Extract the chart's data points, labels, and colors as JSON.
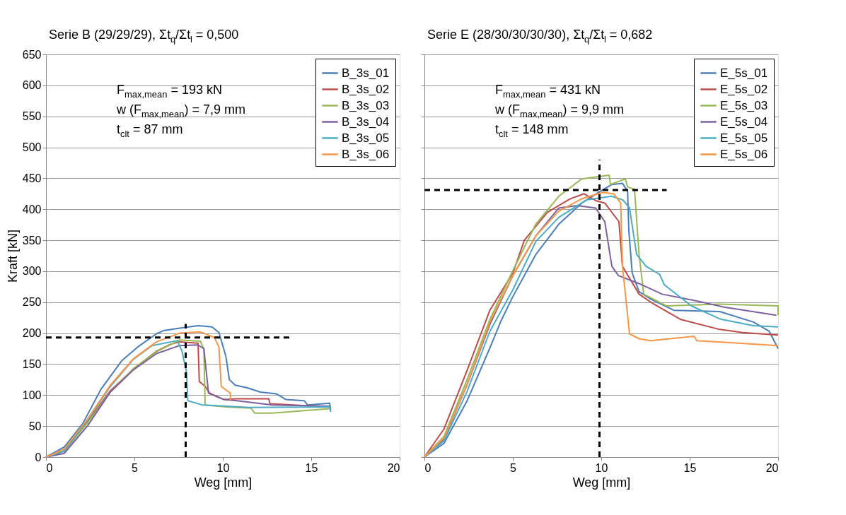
{
  "chart_data": [
    {
      "type": "line",
      "title": "Serie B (29/29/29), Σt$_{q}$/Σt$_{l}$ = 0,500",
      "xlabel": "Weg [mm]",
      "ylabel": "Kraft [kN]",
      "xlim": [
        0,
        20
      ],
      "xticks": [
        0,
        5,
        10,
        15,
        20
      ],
      "ylim": [
        0,
        650
      ],
      "yticks": [
        0,
        50,
        100,
        150,
        200,
        250,
        300,
        350,
        400,
        450,
        500,
        550,
        600,
        650
      ],
      "grid": "y",
      "legend": "top right",
      "marker": "none",
      "line_style": "solid",
      "annotations": [
        "F$_{max,mean}$ = 193 kN",
        "w (F$_{max,mean}$) = 7,9 mm",
        "t$_{clt}$ = 87 mm"
      ],
      "series": [
        {
          "name": "B_3s_01",
          "color": "#4a7ebb",
          "x": [
            0,
            1.03,
            2.08,
            3.12,
            4.3,
            5.2,
            6.25,
            6.64,
            7.56,
            8.6,
            9.39,
            9.78,
            10.17,
            10.37,
            10.7,
            11.35,
            12.13,
            13.04,
            13.56,
            14.6,
            14.8,
            16.04,
            16.1
          ],
          "values": [
            0,
            16,
            54,
            110,
            156,
            178,
            199,
            204,
            208,
            212,
            210,
            201,
            163,
            125,
            116,
            112,
            105,
            102,
            93,
            91,
            84,
            87,
            76
          ]
        },
        {
          "name": "B_3s_02",
          "color": "#be4b48",
          "x": [
            0,
            1.03,
            2.34,
            3.64,
            4.95,
            6.25,
            7.04,
            7.56,
            8.6,
            8.67,
            9.0,
            9.26,
            10.04,
            10.8,
            12.6,
            12.67,
            16.04
          ],
          "values": [
            0,
            10,
            57,
            107,
            142,
            171,
            182,
            186,
            184,
            122,
            114,
            103,
            93,
            94,
            94,
            86,
            81
          ]
        },
        {
          "name": "B_3s_03",
          "color": "#98b954",
          "x": [
            0,
            1.03,
            2.34,
            3.64,
            4.95,
            6.25,
            7.56,
            8.73,
            8.93,
            9.0,
            10.17,
            11.6,
            11.8,
            12.8,
            16.04
          ],
          "values": [
            0,
            9,
            55,
            105,
            143,
            170,
            189,
            187,
            174,
            84,
            81,
            79,
            71,
            71,
            78
          ]
        },
        {
          "name": "B_3s_04",
          "color": "#7d60a0",
          "x": [
            0,
            1.03,
            2.34,
            3.64,
            4.95,
            6.25,
            7.56,
            8.6,
            8.93,
            9.19,
            10.04,
            10.8,
            12.8,
            16.04
          ],
          "values": [
            0,
            6,
            50,
            105,
            141,
            167,
            180,
            181,
            175,
            103,
            93,
            91,
            84,
            82
          ]
        },
        {
          "name": "B_3s_05",
          "color": "#4bacc6",
          "x": [
            0,
            1.03,
            2.34,
            3.64,
            4.95,
            6.0,
            7.43,
            7.69,
            7.95,
            8.02,
            8.86,
            11.48,
            16.04,
            16.1
          ],
          "values": [
            0,
            10,
            59,
            114,
            158,
            180,
            188,
            171,
            137,
            91,
            84,
            80,
            81,
            73
          ]
        },
        {
          "name": "B_3s_06",
          "color": "#f79646",
          "x": [
            0,
            1.03,
            2.34,
            3.64,
            4.95,
            6.25,
            7.56,
            8.73,
            9.52,
            9.78,
            9.91,
            10.43,
            10.43
          ],
          "values": [
            0,
            13,
            61,
            116,
            159,
            186,
            200,
            202,
            193,
            178,
            114,
            103,
            90
          ]
        },
        {
          "color": "#000000",
          "line_style": "dashed",
          "x": [
            0,
            13.8
          ],
          "values": [
            193,
            193
          ]
        },
        {
          "color": "#000000",
          "line_style": "dashed",
          "x": [
            7.9,
            7.9
          ],
          "values": [
            0,
            215
          ]
        }
      ]
    },
    {
      "type": "line",
      "title": "Serie E (28/30/30/30/30), Σt$_{q}$/Σt$_{l}$ = 0,682",
      "xlabel": "Weg [mm]",
      "xlim": [
        0,
        20
      ],
      "xticks": [
        0,
        5,
        10,
        15,
        20
      ],
      "ylim": [
        0,
        650
      ],
      "yticks": [
        0,
        50,
        100,
        150,
        200,
        250,
        300,
        350,
        400,
        450,
        500,
        550,
        600,
        650
      ],
      "grid": "y",
      "legend": "top right",
      "marker": "none",
      "line_style": "solid",
      "tick_labels": "x",
      "annotations": [
        "F$_{max,mean}$ = 431 kN",
        "w (F$_{max,mean}$) = 9,9 mm",
        "t$_{clt}$ = 148 mm"
      ],
      "series": [
        {
          "name": "E_5s_01",
          "color": "#4a7ebb",
          "x": [
            0,
            1.1,
            2.4,
            3.7,
            4.35,
            5.0,
            6.3,
            7.6,
            8.9,
            9.94,
            10.6,
            11.2,
            11.49,
            11.56,
            11.75,
            12.14,
            12.8,
            14.1,
            16.7,
            18.6,
            19.5,
            20
          ],
          "values": [
            0,
            22,
            90,
            176,
            221,
            259,
            327,
            376,
            410,
            429,
            440,
            442,
            429,
            365,
            297,
            267,
            255,
            237,
            235,
            218,
            203,
            175
          ]
        },
        {
          "name": "E_5s_02",
          "color": "#be4b48",
          "x": [
            0,
            1.1,
            2.4,
            3.7,
            5.0,
            5.65,
            6.95,
            8.25,
            9.03,
            9.68,
            10.2,
            11.0,
            11.2,
            12.14,
            12.8,
            14.5,
            16.7,
            18.0,
            20
          ],
          "values": [
            0,
            45,
            139,
            237,
            297,
            350,
            395,
            417,
            425,
            414,
            410,
            380,
            308,
            263,
            250,
            222,
            206,
            201,
            197
          ]
        },
        {
          "name": "E_5s_03",
          "color": "#98b954",
          "x": [
            0,
            1.1,
            2.4,
            3.7,
            5.0,
            6.3,
            7.6,
            8.9,
            10.45,
            10.52,
            11.36,
            11.49,
            11.88,
            12.14,
            12.4,
            13.7,
            16.7,
            20,
            20
          ],
          "values": [
            0,
            33,
            124,
            222,
            301,
            376,
            421,
            449,
            455,
            440,
            449,
            436,
            432,
            327,
            263,
            244,
            247,
            244,
            229
          ]
        },
        {
          "name": "E_5s_04",
          "color": "#7d60a0",
          "x": [
            0,
            1.1,
            2.4,
            3.7,
            5.0,
            6.3,
            7.6,
            8.64,
            9.68,
            10.2,
            10.6,
            10.97,
            12.14,
            13.44,
            15.4,
            16.95,
            19.9
          ],
          "values": [
            0,
            29,
            116,
            214,
            293,
            357,
            402,
            406,
            402,
            380,
            308,
            293,
            280,
            263,
            252,
            242,
            229
          ]
        },
        {
          "name": "E_5s_05",
          "color": "#4bacc6",
          "x": [
            0,
            1.1,
            2.4,
            3.7,
            5.0,
            6.3,
            7.6,
            9.16,
            10.58,
            11.23,
            11.6,
            12.0,
            12.53,
            13.3,
            13.57,
            15.1,
            16.7,
            18.6,
            20
          ],
          "values": [
            0,
            26,
            105,
            203,
            270,
            348,
            387,
            415,
            421,
            415,
            402,
            327,
            308,
            295,
            278,
            244,
            223,
            212,
            210
          ]
        },
        {
          "name": "E_5s_06",
          "color": "#f79646",
          "x": [
            0,
            1.1,
            2.4,
            3.7,
            5.0,
            6.3,
            7.6,
            8.9,
            10.06,
            10.7,
            11.1,
            11.2,
            11.6,
            12.14,
            12.8,
            15.26,
            15.4,
            20
          ],
          "values": [
            0,
            31,
            116,
            218,
            293,
            357,
            397,
            417,
            427,
            425,
            410,
            308,
            199,
            191,
            188,
            195,
            188,
            180
          ]
        },
        {
          "color": "#000000",
          "line_style": "dashed",
          "x": [
            0,
            13.7
          ],
          "values": [
            431,
            431
          ]
        },
        {
          "color": "#000000",
          "line_style": "dashed",
          "x": [
            9.9,
            9.9
          ],
          "values": [
            0,
            480
          ]
        }
      ]
    }
  ]
}
